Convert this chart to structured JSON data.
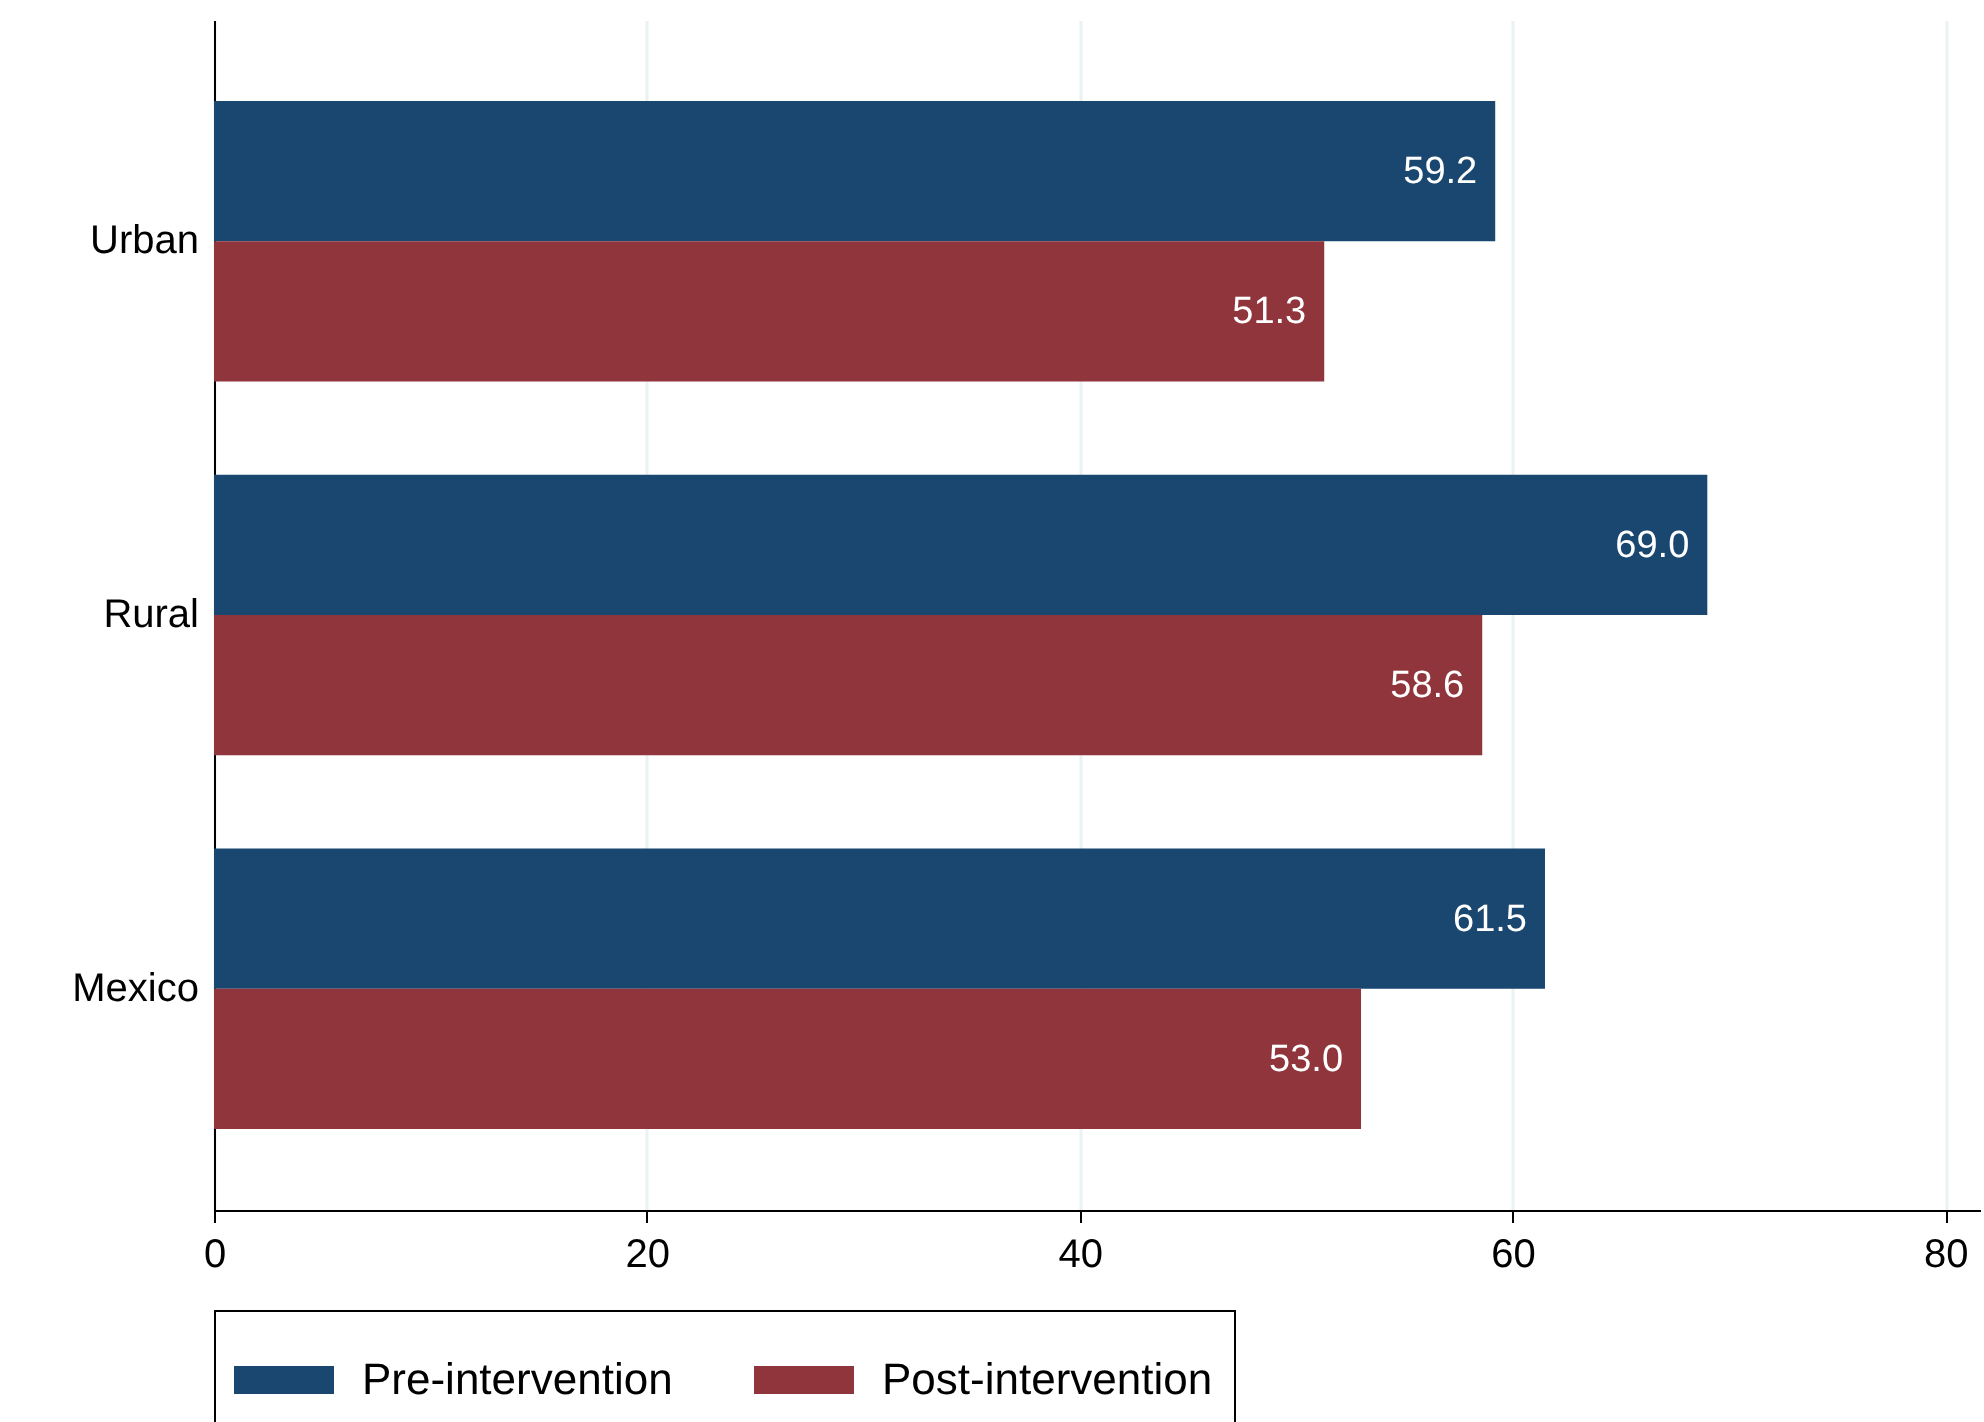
{
  "chart_data": {
    "type": "bar",
    "orientation": "horizontal",
    "categories": [
      "Urban",
      "Rural",
      "Mexico"
    ],
    "series": [
      {
        "name": "Pre-intervention",
        "color": "#1a476f",
        "values": [
          59.2,
          69.0,
          61.5
        ],
        "value_labels": [
          "59.2",
          "69.0",
          "61.5"
        ]
      },
      {
        "name": "Post-intervention",
        "color": "#90353b",
        "values": [
          51.3,
          58.6,
          53.0
        ],
        "value_labels": [
          "51.3",
          "58.6",
          "53.0"
        ]
      }
    ],
    "xlim": [
      0,
      81.6
    ],
    "xticks": [
      0,
      20,
      40,
      60,
      80
    ],
    "grid": "x",
    "legend": "bottom"
  }
}
